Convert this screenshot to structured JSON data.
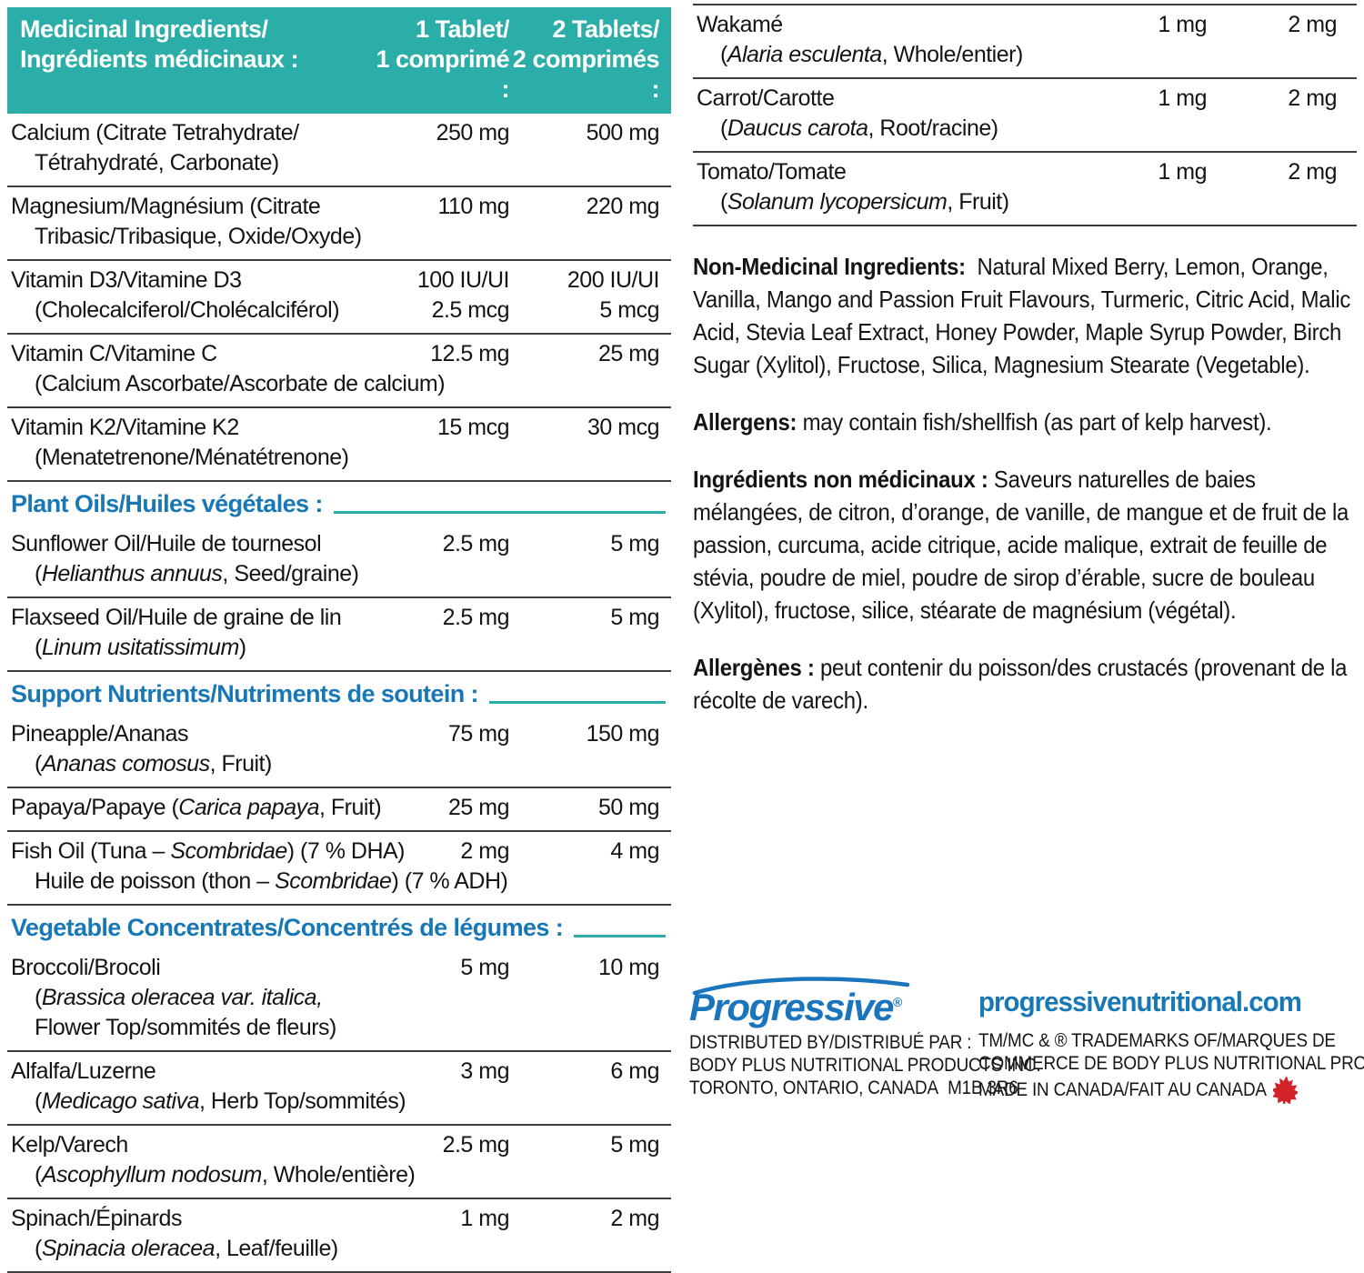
{
  "colors": {
    "teal": "#2BAEA7",
    "blue": "#1878B6",
    "logo_blue": "#1B75BC",
    "red": "#D2232A",
    "divider": "#3D3D3D",
    "text": "#141414"
  },
  "supplement_table": {
    "header": {
      "col_ingredients_en": "Medicinal Ingredients/",
      "col_ingredients_fr": "Ingrédients médicinaux :",
      "col_one_en": "1 Tablet/",
      "col_one_fr": "1 comprimé :",
      "col_two_en": "2 Tablets/",
      "col_two_fr": "2 comprimés :"
    },
    "left_items": [
      {
        "lines": [
          {
            "seg": [
              [
                "t",
                "Calcium (Citrate Tetrahydrate/"
              ]
            ],
            "amt1": "250 mg",
            "amt2": "500 mg"
          },
          {
            "seg": [
              [
                "t",
                "Tétrahydraté, Carbonate)"
              ]
            ],
            "ind": true
          }
        ]
      },
      {
        "lines": [
          {
            "seg": [
              [
                "t",
                "Magnesium/Magnésium (Citrate"
              ]
            ],
            "amt1": "110 mg",
            "amt2": "220 mg"
          },
          {
            "seg": [
              [
                "t",
                "Tribasic/Tribasique, Oxide/Oxyde)"
              ]
            ],
            "ind": true
          }
        ]
      },
      {
        "lines": [
          {
            "seg": [
              [
                "t",
                "Vitamin D3/Vitamine D3"
              ]
            ],
            "amt1": "100 IU/UI",
            "amt2": "200 IU/UI"
          },
          {
            "seg": [
              [
                "t",
                "(Cholecalciferol/Cholécalciférol)"
              ]
            ],
            "ind": true,
            "amt1": "2.5 mcg",
            "amt2": "5 mcg"
          }
        ]
      },
      {
        "lines": [
          {
            "seg": [
              [
                "t",
                "Vitamin C/Vitamine C"
              ]
            ],
            "amt1": "12.5 mg",
            "amt2": "25 mg"
          },
          {
            "seg": [
              [
                "t",
                "(Calcium Ascorbate/Ascorbate de calcium)"
              ]
            ],
            "ind": true
          }
        ]
      },
      {
        "lines": [
          {
            "seg": [
              [
                "t",
                "Vitamin K2/Vitamine K2"
              ]
            ],
            "amt1": "15 mcg",
            "amt2": "30 mcg"
          },
          {
            "seg": [
              [
                "t",
                "(Menatetrenone/Ménatétrenone)"
              ]
            ],
            "ind": true
          }
        ]
      },
      {
        "section": "Plant Oils/Huiles végétales :"
      },
      {
        "lines": [
          {
            "seg": [
              [
                "t",
                "Sunflower Oil/Huile de tournesol"
              ]
            ],
            "amt1": "2.5 mg",
            "amt2": "5 mg"
          },
          {
            "seg": [
              [
                "t",
                "("
              ],
              [
                "i",
                "Helianthus annuus"
              ],
              [
                "t",
                ", Seed/graine)"
              ]
            ],
            "ind": true
          }
        ]
      },
      {
        "lines": [
          {
            "seg": [
              [
                "t",
                "Flaxseed Oil/Huile de graine de lin"
              ]
            ],
            "amt1": "2.5 mg",
            "amt2": "5 mg"
          },
          {
            "seg": [
              [
                "t",
                "("
              ],
              [
                "i",
                "Linum usitatissimum"
              ],
              [
                "t",
                ")"
              ]
            ],
            "ind": true
          }
        ]
      },
      {
        "section": "Support Nutrients/Nutriments de soutein :"
      },
      {
        "lines": [
          {
            "seg": [
              [
                "t",
                "Pineapple/Ananas"
              ]
            ],
            "amt1": "75 mg",
            "amt2": "150 mg"
          },
          {
            "seg": [
              [
                "t",
                "("
              ],
              [
                "i",
                "Ananas comosus"
              ],
              [
                "t",
                ", Fruit)"
              ]
            ],
            "ind": true
          }
        ]
      },
      {
        "lines": [
          {
            "seg": [
              [
                "t",
                "Papaya/Papaye ("
              ],
              [
                "i",
                "Carica papaya"
              ],
              [
                "t",
                ", Fruit)"
              ]
            ],
            "amt1": "25 mg",
            "amt2": "50 mg"
          }
        ]
      },
      {
        "lines": [
          {
            "seg": [
              [
                "t",
                "Fish Oil (Tuna – "
              ],
              [
                "i",
                "Scombridae"
              ],
              [
                "t",
                ") (7 % DHA)"
              ]
            ],
            "amt1": "2 mg",
            "amt2": "4 mg"
          },
          {
            "seg": [
              [
                "t",
                "Huile de poisson (thon – "
              ],
              [
                "i",
                "Scombridae"
              ],
              [
                "t",
                ") (7 % ADH)"
              ]
            ],
            "ind": true
          }
        ]
      },
      {
        "section": "Vegetable Concentrates/Concentrés de légumes :"
      },
      {
        "lines": [
          {
            "seg": [
              [
                "t",
                "Broccoli/Brocoli"
              ]
            ],
            "amt1": "5 mg",
            "amt2": "10 mg"
          },
          {
            "seg": [
              [
                "t",
                "("
              ],
              [
                "i",
                "Brassica oleracea var. italica,"
              ]
            ],
            "ind": true
          },
          {
            "seg": [
              [
                "t",
                "Flower Top/sommités de fleurs)"
              ]
            ],
            "ind": true
          }
        ]
      },
      {
        "lines": [
          {
            "seg": [
              [
                "t",
                "Alfalfa/Luzerne"
              ]
            ],
            "amt1": "3 mg",
            "amt2": "6 mg"
          },
          {
            "seg": [
              [
                "t",
                "("
              ],
              [
                "i",
                "Medicago sativa"
              ],
              [
                "t",
                ", Herb Top/sommités)"
              ]
            ],
            "ind": true
          }
        ]
      },
      {
        "lines": [
          {
            "seg": [
              [
                "t",
                "Kelp/Varech"
              ]
            ],
            "amt1": "2.5 mg",
            "amt2": "5 mg"
          },
          {
            "seg": [
              [
                "t",
                "("
              ],
              [
                "i",
                "Ascophyllum nodosum"
              ],
              [
                "t",
                ", Whole/entière)"
              ]
            ],
            "ind": true
          }
        ]
      },
      {
        "lines": [
          {
            "seg": [
              [
                "t",
                "Spinach/Épinards"
              ]
            ],
            "amt1": "1 mg",
            "amt2": "2 mg"
          },
          {
            "seg": [
              [
                "t",
                "("
              ],
              [
                "i",
                "Spinacia oleracea"
              ],
              [
                "t",
                ", Leaf/feuille)"
              ]
            ],
            "ind": true
          }
        ]
      }
    ],
    "right_items": [
      {
        "lines": [
          {
            "seg": [
              [
                "t",
                "Wakamé"
              ]
            ],
            "amt1": "1 mg",
            "amt2": "2 mg"
          },
          {
            "seg": [
              [
                "t",
                "("
              ],
              [
                "i",
                "Alaria esculenta"
              ],
              [
                "t",
                ", Whole/entier)"
              ]
            ],
            "ind": true
          }
        ]
      },
      {
        "lines": [
          {
            "seg": [
              [
                "t",
                "Carrot/Carotte"
              ]
            ],
            "amt1": "1 mg",
            "amt2": "2 mg"
          },
          {
            "seg": [
              [
                "t",
                "("
              ],
              [
                "i",
                "Daucus carota"
              ],
              [
                "t",
                ", Root/racine)"
              ]
            ],
            "ind": true
          }
        ]
      },
      {
        "lines": [
          {
            "seg": [
              [
                "t",
                "Tomato/Tomate"
              ]
            ],
            "amt1": "1 mg",
            "amt2": "2 mg"
          },
          {
            "seg": [
              [
                "t",
                "("
              ],
              [
                "i",
                "Solanum lycopersicum"
              ],
              [
                "t",
                ", Fruit)"
              ]
            ],
            "ind": true
          }
        ]
      }
    ]
  },
  "paragraphs": [
    {
      "lead": "Non-Medicinal Ingredients:",
      "body": "  Natural Mixed Berry, Lemon, Orange, Vanilla, Mango and Passion Fruit Flavours, Turmeric, Citric Acid, Malic Acid, Stevia Leaf Extract, Honey Powder, Maple Syrup Powder, Birch Sugar (Xylitol), Fructose, Silica, Magnesium Stearate (Vegetable)."
    },
    {
      "lead": "Allergens:",
      "body": " may contain fish/shellfish (as part of kelp harvest)."
    },
    {
      "lead": "Ingrédients non médicinaux :",
      "body": " Saveurs naturelles de baies mélangées, de citron, d’orange, de vanille, de mangue et de fruit de la passion, curcuma, acide citrique, acide malique, extrait de feuille de stévia, poudre de miel, poudre de sirop d’érable, sucre de bouleau (Xylitol), fructose, silice, stéarate de magnésium (végétal)."
    },
    {
      "lead": "Allergènes :",
      "body": " peut contenir du poisson/des crustacés (provenant de la récolte de varech)."
    }
  ],
  "footer": {
    "logo_text": "Progressive",
    "logo_reg": "®",
    "distributed_by": "DISTRIBUTED BY/DISTRIBUÉ PAR :",
    "company": "BODY PLUS NUTRITIONAL PRODUCTS INC.",
    "address": "TORONTO, ONTARIO, CANADA  M1B 3R6",
    "website": "progressivenutritional.com",
    "tm_line1": "TM/MC & ® TRADEMARKS OF/MARQUES DE",
    "tm_line2": "COMMERCE DE BODY PLUS NUTRITIONAL PRODUCTS INC.",
    "made_in": "MADE IN CANADA/FAIT AU CANADA"
  }
}
